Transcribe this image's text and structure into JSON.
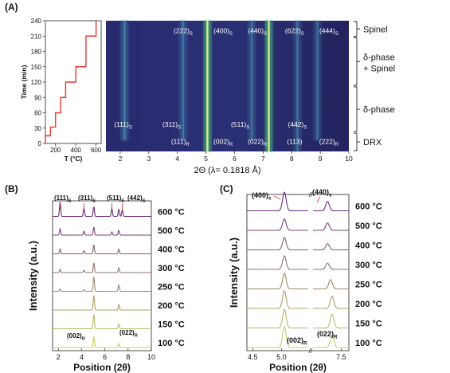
{
  "panels": {
    "a": {
      "letter": "(A)"
    },
    "b": {
      "letter": "(B)"
    },
    "c": {
      "letter": "(C)"
    }
  },
  "colors": {
    "heatmap_bg": "#2a2c70",
    "heatmap_line": "#e8f08a",
    "ramp": "#e53935",
    "phase_600": "#6a2a7a",
    "phase_100": "#c9cf63"
  },
  "chart_data": [
    {
      "type": "line",
      "panel": "A-ramp",
      "xlabel": "T (°C)",
      "ylabel": "Time (min)",
      "xticks": [
        200,
        400,
        600
      ],
      "yticks": [
        0,
        30,
        60,
        90,
        120,
        150,
        180,
        210,
        240
      ],
      "xlim": [
        100,
        650
      ],
      "ylim": [
        0,
        240
      ],
      "series": [
        {
          "points": [
            [
              100,
              0
            ],
            [
              100,
              15
            ],
            [
              150,
              15
            ],
            [
              150,
              32
            ],
            [
              200,
              32
            ],
            [
              200,
              60
            ],
            [
              250,
              60
            ],
            [
              250,
              90
            ],
            [
              300,
              90
            ],
            [
              300,
              120
            ],
            [
              400,
              120
            ],
            [
              400,
              150
            ],
            [
              500,
              150
            ],
            [
              500,
              210
            ],
            [
              600,
              210
            ],
            [
              600,
              240
            ]
          ]
        }
      ]
    },
    {
      "type": "heatmap",
      "panel": "A-heatmap",
      "xlabel": "2Θ (λ= 0.1818 Å)",
      "xlim": [
        1.5,
        10
      ],
      "xticks": [
        2,
        3,
        4,
        5,
        6,
        7,
        8,
        9,
        10
      ],
      "ylim": [
        0,
        240
      ],
      "peaks": [
        {
          "x": 2.15,
          "t_start": 20,
          "t_end": 240,
          "strength": 0.55
        },
        {
          "x": 4.2,
          "t_start": 20,
          "t_end": 240,
          "strength": 0.35
        },
        {
          "x": 5.05,
          "t_start": 0,
          "t_end": 240,
          "strength": 1.0
        },
        {
          "x": 6.6,
          "t_start": 20,
          "t_end": 240,
          "strength": 0.25
        },
        {
          "x": 7.2,
          "t_start": 0,
          "t_end": 240,
          "strength": 0.9
        },
        {
          "x": 8.2,
          "t_start": 0,
          "t_end": 240,
          "strength": 0.2
        },
        {
          "x": 8.9,
          "t_start": 20,
          "t_end": 240,
          "strength": 0.2
        }
      ],
      "peak_labels": [
        {
          "text": "(222)",
          "sub": "S",
          "x": 4.2,
          "y": 222
        },
        {
          "text": "(400)",
          "sub": "S",
          "x": 5.6,
          "y": 222
        },
        {
          "text": "(440)",
          "sub": "S",
          "x": 6.8,
          "y": 222
        },
        {
          "text": "(622)",
          "sub": "S",
          "x": 8.1,
          "y": 222
        },
        {
          "text": "(444)",
          "sub": "S",
          "x": 9.3,
          "y": 222
        },
        {
          "text": "(111)",
          "sub": "S",
          "x": 2.1,
          "y": 50
        },
        {
          "text": "(311)",
          "sub": "S",
          "x": 3.8,
          "y": 50
        },
        {
          "text": "(511)",
          "sub": "S",
          "x": 6.2,
          "y": 50
        },
        {
          "text": "(442)",
          "sub": "S",
          "x": 8.2,
          "y": 50
        },
        {
          "text": "(111)",
          "sub": "R",
          "x": 4.1,
          "y": 18
        },
        {
          "text": "(002)",
          "sub": "R",
          "x": 5.6,
          "y": 18
        },
        {
          "text": "(022)",
          "sub": "R",
          "x": 6.8,
          "y": 18
        },
        {
          "text": "(113)",
          "sub": "",
          "x": 8.1,
          "y": 18
        },
        {
          "text": "(222)",
          "sub": "R",
          "x": 9.3,
          "y": 18
        }
      ],
      "phase_regions": [
        {
          "label": "Spinel",
          "t_start": 210,
          "t_end": 240
        },
        {
          "label": "δ-phase",
          "label2": "+ Spinel",
          "t_start": 120,
          "t_end": 210
        },
        {
          "label": "δ-phase",
          "t_start": 35,
          "t_end": 120
        },
        {
          "label": "DRX",
          "t_start": 0,
          "t_end": 35
        }
      ]
    },
    {
      "type": "line",
      "panel": "B",
      "xlabel": "Position (2θ)",
      "ylabel": "Intensity (a.u.)",
      "xlim": [
        1.5,
        10
      ],
      "xticks": [
        2,
        4,
        6,
        8,
        10
      ],
      "series": [
        {
          "name": "600 °C",
          "peaks": [
            [
              2.15,
              0.9
            ],
            [
              4.2,
              0.5
            ],
            [
              5.05,
              0.6
            ],
            [
              6.6,
              0.5
            ],
            [
              7.2,
              0.45
            ],
            [
              7.5,
              0.4
            ]
          ]
        },
        {
          "name": "500 °C",
          "peaks": [
            [
              2.15,
              0.4
            ],
            [
              4.2,
              0.25
            ],
            [
              5.05,
              0.5
            ],
            [
              6.6,
              0.2
            ],
            [
              7.2,
              0.3
            ]
          ]
        },
        {
          "name": "400 °C",
          "peaks": [
            [
              2.15,
              0.3
            ],
            [
              4.2,
              0.2
            ],
            [
              5.05,
              0.55
            ],
            [
              7.2,
              0.3
            ]
          ]
        },
        {
          "name": "300 °C",
          "peaks": [
            [
              2.15,
              0.2
            ],
            [
              4.2,
              0.15
            ],
            [
              5.05,
              0.6
            ],
            [
              7.2,
              0.3
            ]
          ]
        },
        {
          "name": "250 °C",
          "peaks": [
            [
              2.15,
              0.15
            ],
            [
              4.2,
              0.1
            ],
            [
              5.05,
              0.9
            ],
            [
              7.2,
              0.4
            ]
          ]
        },
        {
          "name": "200 °C",
          "peaks": [
            [
              5.05,
              0.9
            ],
            [
              7.2,
              0.35
            ]
          ]
        },
        {
          "name": "150 °C",
          "peaks": [
            [
              5.05,
              0.9
            ],
            [
              7.2,
              0.3
            ]
          ]
        },
        {
          "name": "100 °C",
          "peaks": [
            [
              5.05,
              0.7
            ],
            [
              7.2,
              0.25
            ]
          ]
        }
      ],
      "annotations": [
        {
          "text": "(111)",
          "sub": "S"
        },
        {
          "text": "(311)",
          "sub": "S"
        },
        {
          "text": "(511)",
          "sub": "S"
        },
        {
          "text": "(442)",
          "sub": "S"
        },
        {
          "text": "(002)",
          "sub": "R"
        },
        {
          "text": "(022)",
          "sub": "R"
        }
      ]
    },
    {
      "type": "line",
      "panel": "C",
      "xlabel": "Position (2θ)",
      "ylabel": "Intensity (a.u.)",
      "xticks": [
        "4.5",
        "5.0",
        "7.5"
      ],
      "series": [
        {
          "name": "600 °C",
          "peaks": [
            [
              5.05,
              0.9
            ],
            [
              7.05,
              0.45
            ]
          ]
        },
        {
          "name": "500 °C",
          "peaks": [
            [
              5.05,
              0.55
            ],
            [
              7.05,
              0.35
            ]
          ]
        },
        {
          "name": "400 °C",
          "peaks": [
            [
              5.05,
              0.6
            ],
            [
              7.05,
              0.3
            ]
          ]
        },
        {
          "name": "300 °C",
          "peaks": [
            [
              5.05,
              0.65
            ],
            [
              7.05,
              0.3
            ]
          ]
        },
        {
          "name": "250 °C",
          "peaks": [
            [
              5.05,
              0.75
            ],
            [
              7.15,
              0.45
            ]
          ]
        },
        {
          "name": "200 °C",
          "peaks": [
            [
              5.05,
              0.85
            ],
            [
              7.2,
              0.6
            ]
          ]
        },
        {
          "name": "150 °C",
          "peaks": [
            [
              5.05,
              0.9
            ],
            [
              7.2,
              0.65
            ]
          ]
        },
        {
          "name": "100 °C",
          "peaks": [
            [
              5.05,
              1.0
            ],
            [
              7.2,
              0.6
            ]
          ]
        }
      ],
      "annotations": [
        {
          "text": "(400)",
          "sub": "s"
        },
        {
          "text": "(440)",
          "sub": "s"
        },
        {
          "text": "(002)",
          "sub": "R"
        },
        {
          "text": "(022)",
          "sub": "R"
        }
      ]
    }
  ]
}
